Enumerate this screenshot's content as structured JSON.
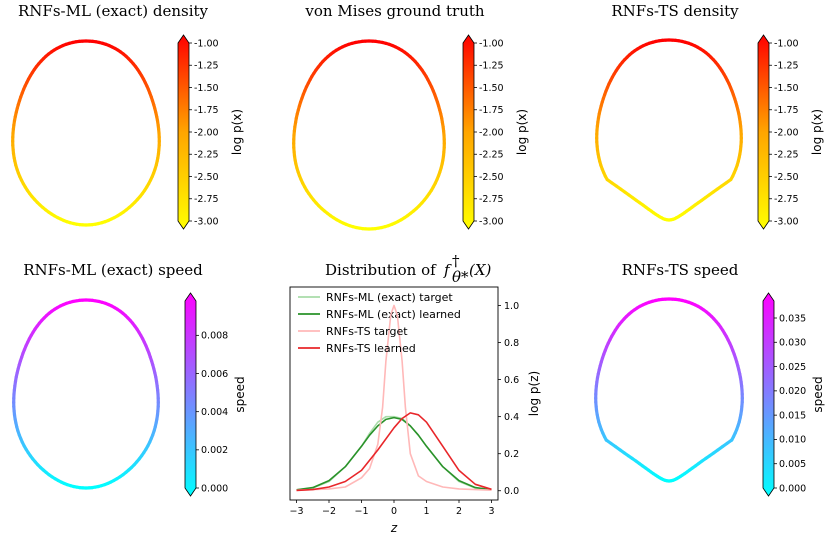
{
  "colors": {
    "density_colormap": [
      "#ffff00",
      "#ffa500",
      "#ff0000"
    ],
    "speed_colormap": [
      "#00ffff",
      "#ff00ff"
    ],
    "rnfs_ml_learned": "#2a922a",
    "rnfs_ml_target": "#a8dca8",
    "rnfs_ts_learned": "#e8262a",
    "rnfs_ts_target": "#ffb8b8"
  },
  "chart_data": [
    {
      "id": "ml-density",
      "type": "scatter",
      "title": "RNFs-ML (exact) density",
      "colorbar": {
        "label": "log p(x)",
        "range": [
          -3.0,
          -1.0
        ],
        "ticks": [
          "-1.00",
          "-1.25",
          "-1.50",
          "-1.75",
          "-2.00",
          "-2.25",
          "-2.50",
          "-2.75",
          "-3.00"
        ],
        "cmap": "density"
      }
    },
    {
      "id": "vm-density",
      "type": "scatter",
      "title": "von Mises ground truth",
      "colorbar": {
        "label": "log p(x)",
        "range": [
          -3.0,
          -1.0
        ],
        "ticks": [
          "-1.00",
          "-1.25",
          "-1.50",
          "-1.75",
          "-2.00",
          "-2.25",
          "-2.50",
          "-2.75",
          "-3.00"
        ],
        "cmap": "density"
      }
    },
    {
      "id": "ts-density",
      "type": "scatter",
      "title": "RNFs-TS density",
      "colorbar": {
        "label": "log p(x)",
        "range": [
          -3.0,
          -1.0
        ],
        "ticks": [
          "-1.00",
          "-1.25",
          "-1.50",
          "-1.75",
          "-2.00",
          "-2.25",
          "-2.50",
          "-2.75",
          "-3.00"
        ],
        "cmap": "density"
      }
    },
    {
      "id": "ml-speed",
      "type": "scatter",
      "title": "RNFs-ML (exact) speed",
      "colorbar": {
        "label": "speed",
        "range": [
          0.0,
          0.0098
        ],
        "ticks": [
          "0.000",
          "0.002",
          "0.004",
          "0.006",
          "0.008"
        ],
        "tick_values": [
          0,
          0.002,
          0.004,
          0.006,
          0.008
        ],
        "cmap": "speed"
      }
    },
    {
      "id": "dist",
      "type": "line",
      "title": "Distribution of",
      "title_math": {
        "base": "f",
        "sup": "†",
        "sub": "θ*",
        "arg": "(X)"
      },
      "xlabel": "z",
      "ylabel": "log p(z)",
      "xlim": [
        -3.2,
        3.2
      ],
      "ylim": [
        -0.05,
        1.1
      ],
      "xticks": [
        "−3",
        "−2",
        "−1",
        "0",
        "1",
        "2",
        "3"
      ],
      "xtick_values": [
        -3,
        -2,
        -1,
        0,
        1,
        2,
        3
      ],
      "yticks": [
        "0.0",
        "0.2",
        "0.4",
        "0.6",
        "0.8",
        "1.0"
      ],
      "ytick_values": [
        0.0,
        0.2,
        0.4,
        0.6,
        0.8,
        1.0
      ],
      "legend_position": "top-left",
      "series": [
        {
          "name": "RNFs-ML (exact) target",
          "color_key": "rnfs_ml_target",
          "x": [
            -3,
            -2.5,
            -2,
            -1.5,
            -1,
            -0.75,
            -0.5,
            -0.25,
            0,
            0.25,
            0.5,
            0.75,
            1,
            1.5,
            2,
            2.5,
            3
          ],
          "y": [
            0.005,
            0.015,
            0.05,
            0.13,
            0.24,
            0.31,
            0.37,
            0.4,
            0.4,
            0.39,
            0.35,
            0.3,
            0.24,
            0.13,
            0.05,
            0.015,
            0.005
          ]
        },
        {
          "name": "RNFs-ML (exact) learned",
          "color_key": "rnfs_ml_learned",
          "x": [
            -3,
            -2.5,
            -2,
            -1.5,
            -1,
            -0.75,
            -0.5,
            -0.25,
            0,
            0.25,
            0.5,
            0.75,
            1,
            1.5,
            2,
            2.5,
            3
          ],
          "y": [
            0.005,
            0.017,
            0.055,
            0.13,
            0.24,
            0.3,
            0.35,
            0.385,
            0.395,
            0.385,
            0.35,
            0.3,
            0.24,
            0.13,
            0.055,
            0.017,
            0.005
          ]
        },
        {
          "name": "RNFs-TS target",
          "color_key": "rnfs_ts_target",
          "x": [
            -3,
            -2,
            -1.5,
            -1,
            -0.75,
            -0.5,
            -0.35,
            -0.25,
            -0.1,
            0,
            0.1,
            0.25,
            0.35,
            0.5,
            0.75,
            1,
            1.5,
            2,
            3
          ],
          "y": [
            0.003,
            0.01,
            0.02,
            0.07,
            0.12,
            0.25,
            0.45,
            0.7,
            0.95,
            1.0,
            0.95,
            0.7,
            0.45,
            0.2,
            0.08,
            0.05,
            0.02,
            0.01,
            0.003
          ]
        },
        {
          "name": "RNFs-TS learned",
          "color_key": "rnfs_ts_learned",
          "x": [
            -3,
            -2.5,
            -2,
            -1.5,
            -1,
            -0.5,
            0,
            0.25,
            0.5,
            0.75,
            1,
            1.5,
            2,
            2.5,
            3
          ],
          "y": [
            0.002,
            0.006,
            0.02,
            0.05,
            0.11,
            0.22,
            0.34,
            0.39,
            0.42,
            0.41,
            0.37,
            0.24,
            0.11,
            0.035,
            0.008
          ]
        }
      ]
    },
    {
      "id": "ts-speed",
      "type": "scatter",
      "title": "RNFs-TS speed",
      "colorbar": {
        "label": "speed",
        "range": [
          0.0,
          0.0385
        ],
        "ticks": [
          "0.000",
          "0.005",
          "0.010",
          "0.015",
          "0.020",
          "0.025",
          "0.030",
          "0.035"
        ],
        "tick_values": [
          0,
          0.005,
          0.01,
          0.015,
          0.02,
          0.025,
          0.03,
          0.035
        ],
        "cmap": "speed"
      }
    }
  ]
}
